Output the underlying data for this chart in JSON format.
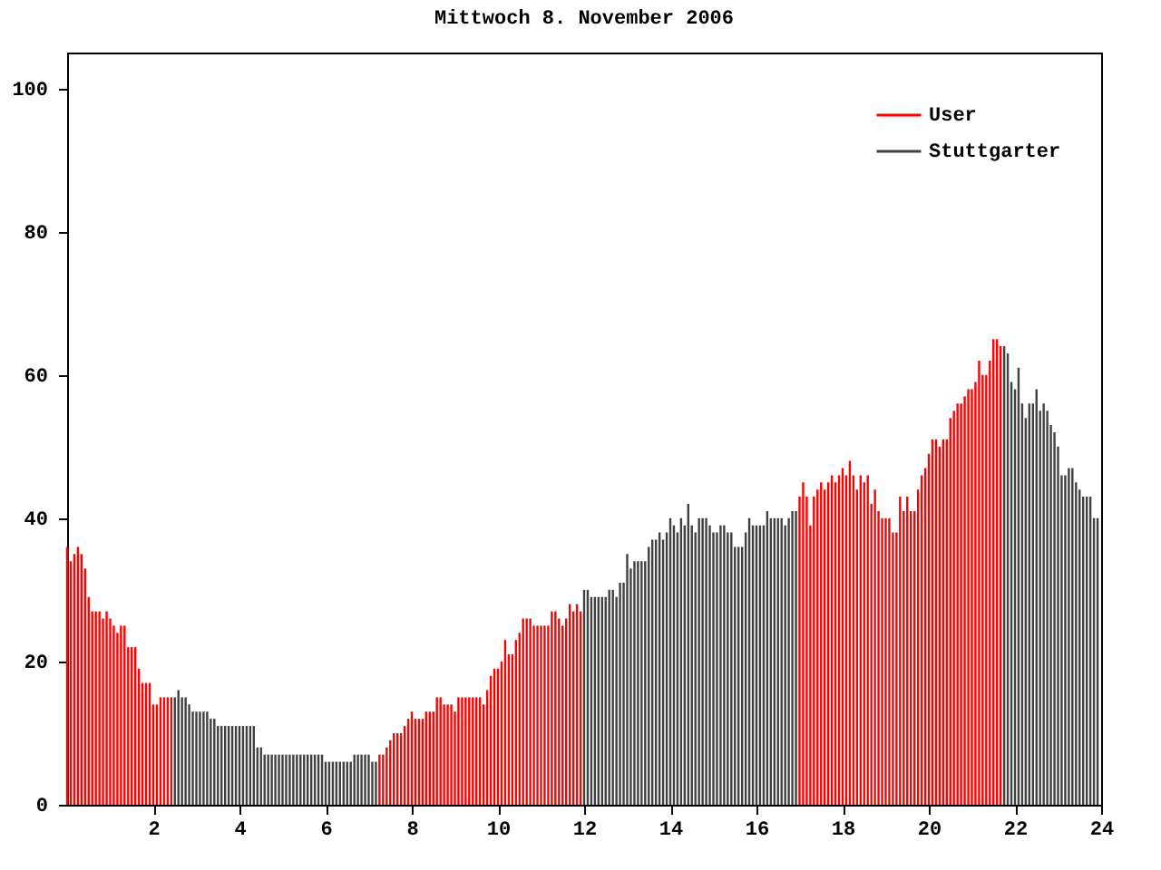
{
  "chart_data": {
    "type": "bar",
    "title": "Mittwoch 8. November 2006",
    "legend": "top right",
    "grid": false,
    "xlim": [
      0,
      24
    ],
    "xticks": [
      2,
      4,
      6,
      8,
      10,
      12,
      14,
      16,
      18,
      20,
      22,
      24
    ],
    "ylim": [
      0,
      105
    ],
    "yticks": [
      0,
      20,
      40,
      60,
      80,
      100
    ],
    "series": [
      {
        "name": "User",
        "color": "#ff0000",
        "x": [
          0,
          0.083,
          0.167,
          0.25,
          0.333,
          0.417,
          0.5,
          0.583,
          0.667,
          0.75,
          0.833,
          0.917,
          1,
          1.083,
          1.167,
          1.25,
          1.333,
          1.417,
          1.5,
          1.583,
          1.667,
          1.75,
          1.833,
          1.917,
          2,
          2.083,
          2.167,
          2.25,
          2.333,
          2.417,
          7.25,
          7.333,
          7.417,
          7.5,
          7.583,
          7.667,
          7.75,
          7.833,
          7.917,
          8,
          8.083,
          8.167,
          8.25,
          8.333,
          8.417,
          8.5,
          8.583,
          8.667,
          8.75,
          8.833,
          8.917,
          9,
          9.083,
          9.167,
          9.25,
          9.333,
          9.417,
          9.5,
          9.583,
          9.667,
          9.75,
          9.833,
          9.917,
          10,
          10.083,
          10.167,
          10.25,
          10.333,
          10.417,
          10.5,
          10.583,
          10.667,
          10.75,
          10.833,
          10.917,
          11,
          11.083,
          11.167,
          11.25,
          11.333,
          11.417,
          11.5,
          11.583,
          11.667,
          11.75,
          11.833,
          11.917,
          17,
          17.083,
          17.167,
          17.25,
          17.333,
          17.417,
          17.5,
          17.583,
          17.667,
          17.75,
          17.833,
          17.917,
          18,
          18.083,
          18.167,
          18.25,
          18.333,
          18.417,
          18.5,
          18.583,
          18.667,
          18.75,
          18.833,
          18.917,
          19,
          19.083,
          19.167,
          19.25,
          19.333,
          19.417,
          19.5,
          19.583,
          19.667,
          19.75,
          19.833,
          19.917,
          20,
          20.083,
          20.167,
          20.25,
          20.333,
          20.417,
          20.5,
          20.583,
          20.667,
          20.75,
          20.833,
          20.917,
          21,
          21.083,
          21.167,
          21.25,
          21.333,
          21.417,
          21.5,
          21.583,
          21.667
        ],
        "values": [
          36,
          34,
          35,
          36,
          35,
          33,
          29,
          27,
          27,
          27,
          26,
          27,
          26,
          25,
          24,
          25,
          25,
          22,
          22,
          22,
          19,
          17,
          17,
          17,
          14,
          14,
          15,
          15,
          15,
          15,
          7,
          7,
          8,
          9,
          10,
          10,
          10,
          11,
          12,
          13,
          12,
          12,
          12,
          13,
          13,
          13,
          15,
          15,
          14,
          14,
          14,
          13,
          15,
          15,
          15,
          15,
          15,
          15,
          15,
          14,
          16,
          18,
          19,
          19,
          20,
          23,
          21,
          21,
          23,
          24,
          26,
          26,
          26,
          25,
          25,
          25,
          25,
          25,
          27,
          27,
          26,
          25,
          26,
          28,
          27,
          28,
          27,
          43,
          45,
          43,
          39,
          43,
          44,
          45,
          44,
          45,
          46,
          45,
          46,
          47,
          46,
          48,
          46,
          44,
          46,
          45,
          46,
          42,
          44,
          41,
          40,
          40,
          40,
          38,
          38,
          43,
          41,
          43,
          41,
          41,
          44,
          46,
          47,
          49,
          51,
          51,
          50,
          51,
          51,
          54,
          55,
          56,
          56,
          57,
          58,
          58,
          59,
          62,
          60,
          60,
          62,
          65,
          65,
          64
        ]
      },
      {
        "name": "Stuttgarter",
        "color": "#404040",
        "x": [
          2.5,
          2.583,
          2.667,
          2.75,
          2.833,
          2.917,
          3,
          3.083,
          3.167,
          3.25,
          3.333,
          3.417,
          3.5,
          3.583,
          3.667,
          3.75,
          3.833,
          3.917,
          4,
          4.083,
          4.167,
          4.25,
          4.333,
          4.417,
          4.5,
          4.583,
          4.667,
          4.75,
          4.833,
          4.917,
          5,
          5.083,
          5.167,
          5.25,
          5.333,
          5.417,
          5.5,
          5.583,
          5.667,
          5.75,
          5.833,
          5.917,
          6,
          6.083,
          6.167,
          6.25,
          6.333,
          6.417,
          6.5,
          6.583,
          6.667,
          6.75,
          6.833,
          6.917,
          7,
          7.083,
          7.167,
          12,
          12.083,
          12.167,
          12.25,
          12.333,
          12.417,
          12.5,
          12.583,
          12.667,
          12.75,
          12.833,
          12.917,
          13,
          13.083,
          13.167,
          13.25,
          13.333,
          13.417,
          13.5,
          13.583,
          13.667,
          13.75,
          13.833,
          13.917,
          14,
          14.083,
          14.167,
          14.25,
          14.333,
          14.417,
          14.5,
          14.583,
          14.667,
          14.75,
          14.833,
          14.917,
          15,
          15.083,
          15.167,
          15.25,
          15.333,
          15.417,
          15.5,
          15.583,
          15.667,
          15.75,
          15.833,
          15.917,
          16,
          16.083,
          16.167,
          16.25,
          16.333,
          16.417,
          16.5,
          16.583,
          16.667,
          16.75,
          16.833,
          16.917,
          21.75,
          21.833,
          21.917,
          22,
          22.083,
          22.167,
          22.25,
          22.333,
          22.417,
          22.5,
          22.583,
          22.667,
          22.75,
          22.833,
          22.917,
          23,
          23.083,
          23.167,
          23.25,
          23.333,
          23.417,
          23.5,
          23.583,
          23.667,
          23.75,
          23.833,
          23.917
        ],
        "values": [
          15,
          16,
          15,
          15,
          14,
          13,
          13,
          13,
          13,
          13,
          12,
          12,
          11,
          11,
          11,
          11,
          11,
          11,
          11,
          11,
          11,
          11,
          11,
          8,
          8,
          7,
          7,
          7,
          7,
          7,
          7,
          7,
          7,
          7,
          7,
          7,
          7,
          7,
          7,
          7,
          7,
          7,
          6,
          6,
          6,
          6,
          6,
          6,
          6,
          6,
          7,
          7,
          7,
          7,
          7,
          6,
          6,
          30,
          30,
          29,
          29,
          29,
          29,
          29,
          30,
          30,
          29,
          31,
          31,
          35,
          33,
          34,
          34,
          34,
          34,
          36,
          37,
          37,
          38,
          37,
          38,
          40,
          39,
          38,
          40,
          39,
          42,
          39,
          38,
          40,
          40,
          40,
          39,
          38,
          38,
          39,
          39,
          38,
          38,
          36,
          36,
          36,
          38,
          40,
          39,
          39,
          39,
          39,
          41,
          40,
          40,
          40,
          40,
          39,
          40,
          41,
          41,
          64,
          63,
          59,
          58,
          61,
          56,
          54,
          56,
          56,
          58,
          55,
          56,
          55,
          53,
          52,
          50,
          46,
          46,
          47,
          47,
          45,
          44,
          43,
          43,
          43,
          40,
          40
        ]
      }
    ]
  }
}
